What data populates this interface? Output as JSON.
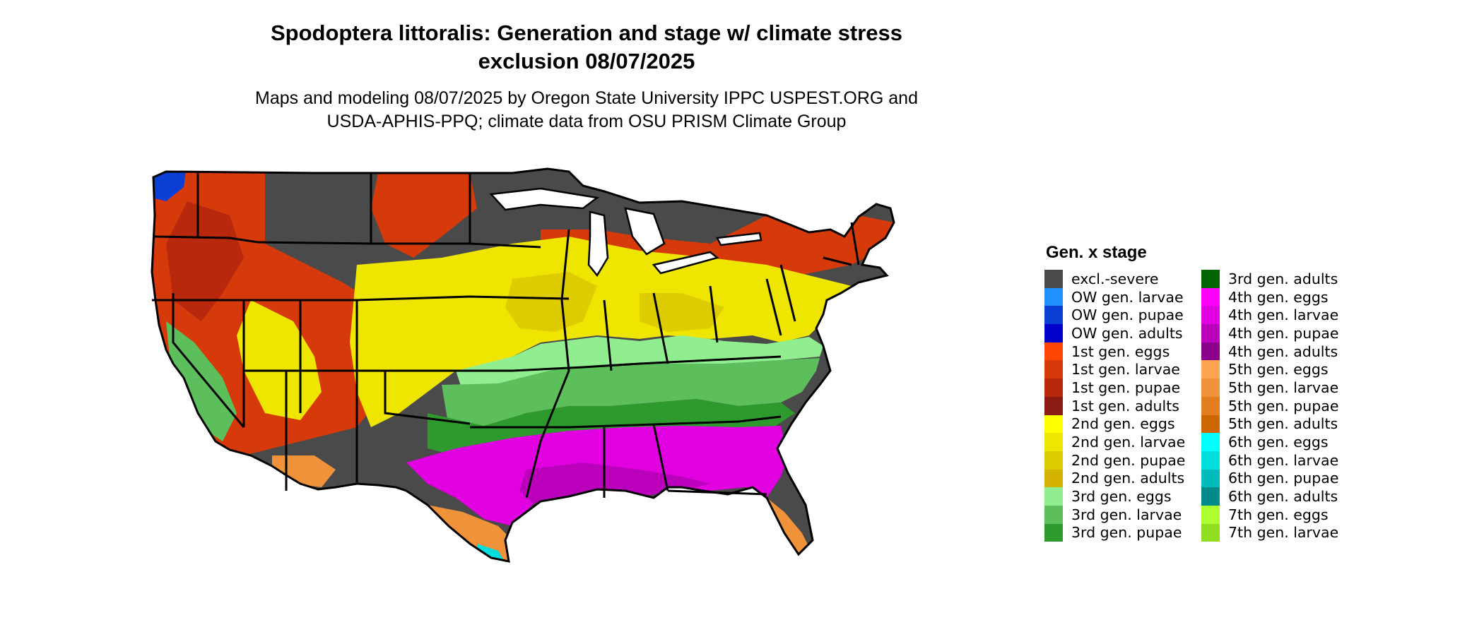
{
  "title": {
    "line1": "Spodoptera littoralis: Generation and stage w/ climate stress",
    "line2": "exclusion 08/07/2025"
  },
  "subtitle": {
    "line1": "Maps and modeling 08/07/2025 by Oregon State University IPPC USPEST.ORG and",
    "line2": "USDA-APHIS-PPQ; climate data from OSU PRISM Climate Group"
  },
  "legend": {
    "title": "Gen. x stage",
    "items": [
      {
        "label": "excl.-severe",
        "color": "#4a4a4a"
      },
      {
        "label": "OW gen. larvae",
        "color": "#1e90ff"
      },
      {
        "label": "OW gen. pupae",
        "color": "#0a3fd6"
      },
      {
        "label": "OW gen. adults",
        "color": "#0000c8"
      },
      {
        "label": "1st gen. eggs",
        "color": "#ff4500"
      },
      {
        "label": "1st gen. larvae",
        "color": "#d63a0a"
      },
      {
        "label": "1st gen. pupae",
        "color": "#b8280c"
      },
      {
        "label": "1st gen. adults",
        "color": "#8b1a12"
      },
      {
        "label": "2nd gen. eggs",
        "color": "#ffff00"
      },
      {
        "label": "2nd gen. larvae",
        "color": "#eee600"
      },
      {
        "label": "2nd gen. pupae",
        "color": "#ddcc00"
      },
      {
        "label": "2nd gen. adults",
        "color": "#d4b400"
      },
      {
        "label": "3rd gen. eggs",
        "color": "#90ee90"
      },
      {
        "label": "3rd gen. larvae",
        "color": "#5cbf5c"
      },
      {
        "label": "3rd gen. pupae",
        "color": "#2e9a2e"
      },
      {
        "label": "3rd gen. adults",
        "color": "#006400"
      },
      {
        "label": "4th gen. eggs",
        "color": "#ff00ff"
      },
      {
        "label": "4th gen. larvae",
        "color": "#e000e0"
      },
      {
        "label": "4th gen. pupae",
        "color": "#bb00bb"
      },
      {
        "label": "4th gen. adults",
        "color": "#8b008b"
      },
      {
        "label": "5th gen. eggs",
        "color": "#ffa552"
      },
      {
        "label": "5th gen. larvae",
        "color": "#f0923a"
      },
      {
        "label": "5th gen. pupae",
        "color": "#e27d20"
      },
      {
        "label": "5th gen. adults",
        "color": "#cd6600"
      },
      {
        "label": "6th gen. eggs",
        "color": "#00ffff"
      },
      {
        "label": "6th gen. larvae",
        "color": "#00dddd"
      },
      {
        "label": "6th gen. pupae",
        "color": "#00bbbb"
      },
      {
        "label": "6th gen. adults",
        "color": "#008b8b"
      },
      {
        "label": "7th gen. eggs",
        "color": "#adff2f"
      },
      {
        "label": "7th gen. larvae",
        "color": "#8fde20"
      }
    ]
  }
}
